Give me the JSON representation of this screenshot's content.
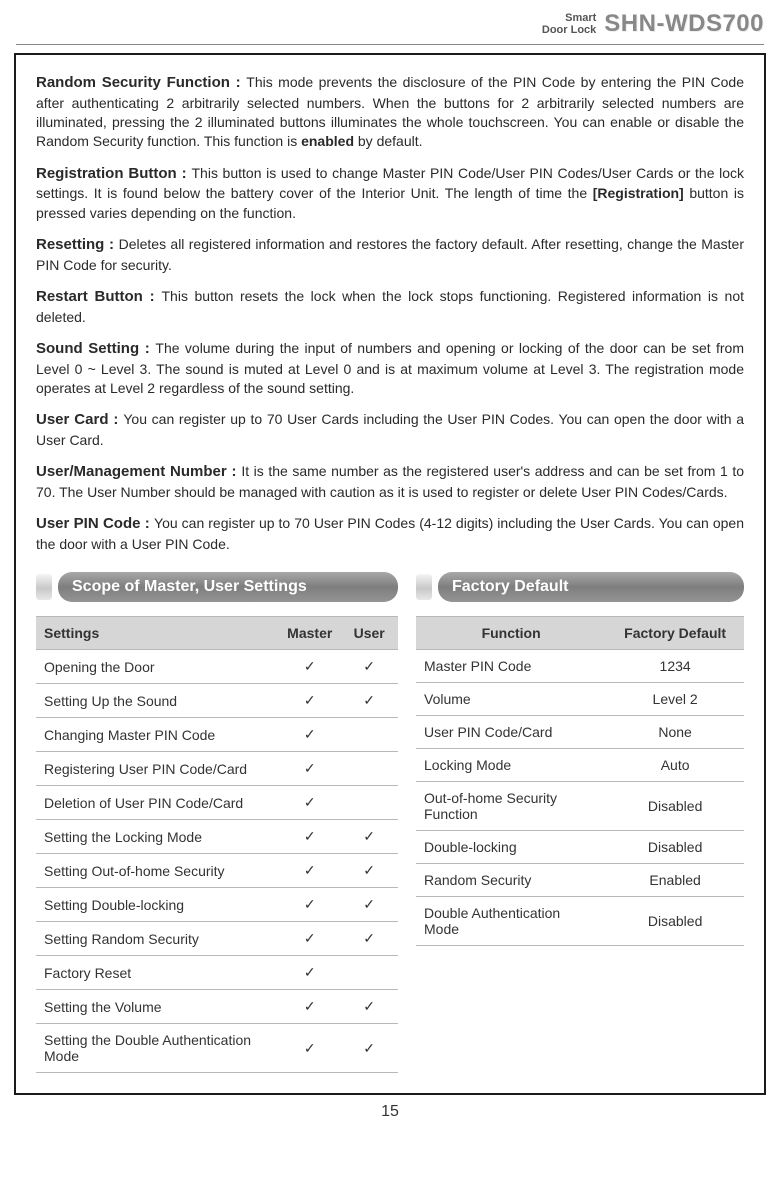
{
  "header": {
    "sub1": "Smart",
    "sub2": "Door Lock",
    "product": "SHN-WDS700"
  },
  "terms": [
    {
      "title": "Random Security Function : ",
      "body_a": "This mode prevents the disclosure of the PIN Code by entering the PIN Code after authenticating 2 arbitrarily selected numbers. When the buttons for 2 arbitrarily selected numbers are illuminated, pressing the 2 illuminated buttons illuminates the whole touchscreen. You can enable or disable the Random Security function. This function is ",
      "bold_tail": "enabled",
      "body_b": " by default."
    },
    {
      "title": "Registration Button : ",
      "body_a": "This button is used to change Master PIN Code/User PIN Codes/User Cards or the lock settings. It is found below the battery cover of the Interior Unit. The length of time the ",
      "bold_tail": "[Registration]",
      "body_b": " button is pressed varies depending on the function."
    },
    {
      "title": "Resetting : ",
      "body_a": "Deletes all registered information and restores the factory default. After resetting, change the Master PIN Code for security.",
      "bold_tail": "",
      "body_b": ""
    },
    {
      "title": "Restart Button : ",
      "body_a": "This button resets the lock when the lock stops functioning. Registered information is not deleted.",
      "bold_tail": "",
      "body_b": ""
    },
    {
      "title": "Sound Setting : ",
      "body_a": "The volume during the input of numbers and opening or locking of the door can be set from Level 0 ~ Level 3. The sound is muted at Level 0 and is at maximum volume at Level 3. The registration mode operates at Level 2 regardless of the sound setting.",
      "bold_tail": "",
      "body_b": ""
    },
    {
      "title": "User Card  : ",
      "body_a": "You can register up to 70 User Cards including the User PIN Codes. You can open the door with a User Card.",
      "bold_tail": "",
      "body_b": ""
    },
    {
      "title": "User/Management Number : ",
      "body_a": "It is the same number as the registered user's address and can be set from 1 to 70. The User Number should be managed with caution as it is used to register or delete User PIN Codes/Cards.",
      "bold_tail": "",
      "body_b": ""
    },
    {
      "title": "User PIN Code : ",
      "body_a": "You can register up to 70 User PIN Codes (4-12 digits) including the User Cards. You can open the door with a User PIN Code.",
      "bold_tail": "",
      "body_b": ""
    }
  ],
  "scope_heading": "Scope of Master, User Settings",
  "factory_heading": "Factory Default",
  "settings_columns": [
    "Settings",
    "Master",
    "User"
  ],
  "settings_rows": [
    [
      "Opening the Door",
      "✓",
      "✓"
    ],
    [
      "Setting Up the Sound",
      "✓",
      "✓"
    ],
    [
      "Changing Master PIN Code",
      "✓",
      ""
    ],
    [
      "Registering User PIN Code/Card",
      "✓",
      ""
    ],
    [
      "Deletion of User PIN Code/Card",
      "✓",
      ""
    ],
    [
      "Setting the Locking Mode",
      "✓",
      "✓"
    ],
    [
      "Setting Out-of-home Security",
      "✓",
      "✓"
    ],
    [
      "Setting Double-locking",
      "✓",
      "✓"
    ],
    [
      "Setting Random Security",
      "✓",
      "✓"
    ],
    [
      "Factory Reset",
      "✓",
      ""
    ],
    [
      "Setting the Volume",
      "✓",
      "✓"
    ],
    [
      "Setting the Double Authentication Mode",
      "✓",
      "✓"
    ]
  ],
  "factory_columns": [
    "Function",
    "Factory Default"
  ],
  "factory_rows": [
    [
      "Master PIN Code",
      "1234"
    ],
    [
      "Volume",
      "Level 2"
    ],
    [
      "User PIN Code/Card",
      "None"
    ],
    [
      "Locking Mode",
      "Auto"
    ],
    [
      "Out-of-home Security Function",
      "Disabled"
    ],
    [
      "Double-locking",
      "Disabled"
    ],
    [
      "Random Security",
      "Enabled"
    ],
    [
      "Double Authentication Mode",
      "Disabled"
    ]
  ],
  "page_number": "15",
  "colors": {
    "frame_border": "#1a1a1a",
    "table_header_bg": "#d6d6d6",
    "row_border": "#b8b8b8"
  }
}
